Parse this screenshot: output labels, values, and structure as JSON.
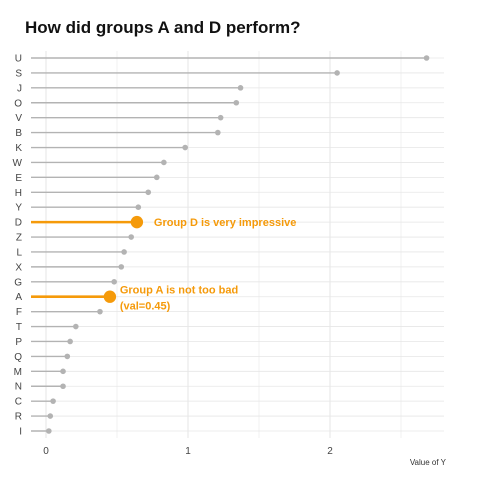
{
  "chart_data": {
    "type": "lollipop",
    "title": "How did groups A and D perform?",
    "xlabel": "Value of Y",
    "ylabel": "",
    "xlim": [
      -0.1,
      2.8
    ],
    "xticks": [
      0,
      1,
      2
    ],
    "grid": true,
    "categories": [
      "U",
      "S",
      "J",
      "O",
      "V",
      "B",
      "K",
      "W",
      "E",
      "H",
      "Y",
      "D",
      "Z",
      "L",
      "X",
      "G",
      "A",
      "F",
      "T",
      "P",
      "Q",
      "M",
      "N",
      "C",
      "R",
      "I"
    ],
    "values": [
      2.68,
      2.05,
      1.37,
      1.34,
      1.23,
      1.21,
      0.98,
      0.83,
      0.78,
      0.72,
      0.65,
      0.64,
      0.6,
      0.55,
      0.53,
      0.48,
      0.45,
      0.38,
      0.21,
      0.17,
      0.15,
      0.12,
      0.12,
      0.05,
      0.03,
      0.02
    ],
    "highlighted": [
      "D",
      "A"
    ],
    "colors": {
      "default": "#b3b3b3",
      "highlight": "#f59a0a",
      "grid": "#e6e6e6"
    },
    "annotations": [
      {
        "category": "D",
        "lines": [
          "Group D is very impressive"
        ],
        "anchor_value": 0.76
      },
      {
        "category": "A",
        "lines": [
          "Group A is not too bad",
          " (val=0.45)"
        ],
        "anchor_value": 0.52
      }
    ]
  }
}
